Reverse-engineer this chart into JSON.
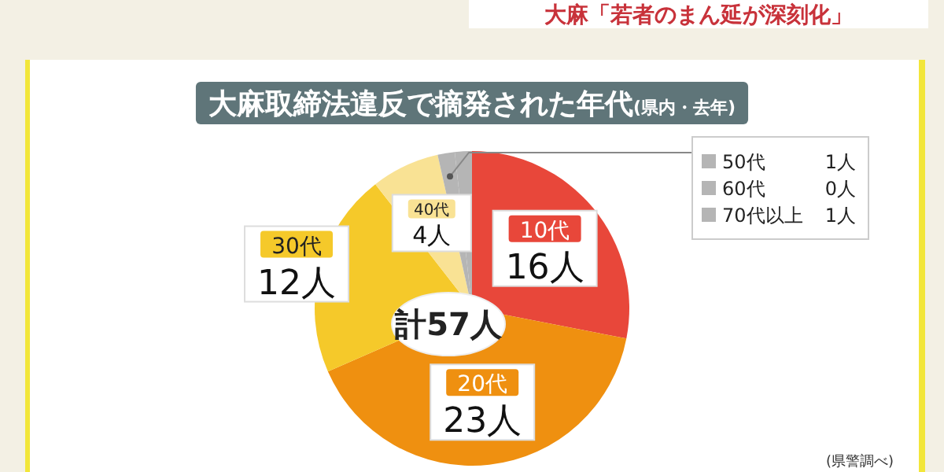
{
  "chart_data": {
    "type": "pie",
    "title": "大麻取締法違反で摘発された年代",
    "subtitle": "(県内・去年)",
    "categories": [
      "10代",
      "20代",
      "30代",
      "40代",
      "50代",
      "60代",
      "70代以上"
    ],
    "values": [
      16,
      23,
      12,
      4,
      1,
      0,
      1
    ],
    "colors": [
      "#e8473a",
      "#ef9010",
      "#f5c92a",
      "#f9e294",
      "#b5b5b5",
      "#b5b5b5",
      "#b5b5b5"
    ],
    "value_labels": [
      "16人",
      "23人",
      "12人",
      "4人",
      "1人",
      "0人",
      "1人"
    ],
    "annotations": [
      "大麻「若者のまん延が深刻化」",
      "計57人",
      "(県警調べ)"
    ],
    "legend": "top right"
  }
}
